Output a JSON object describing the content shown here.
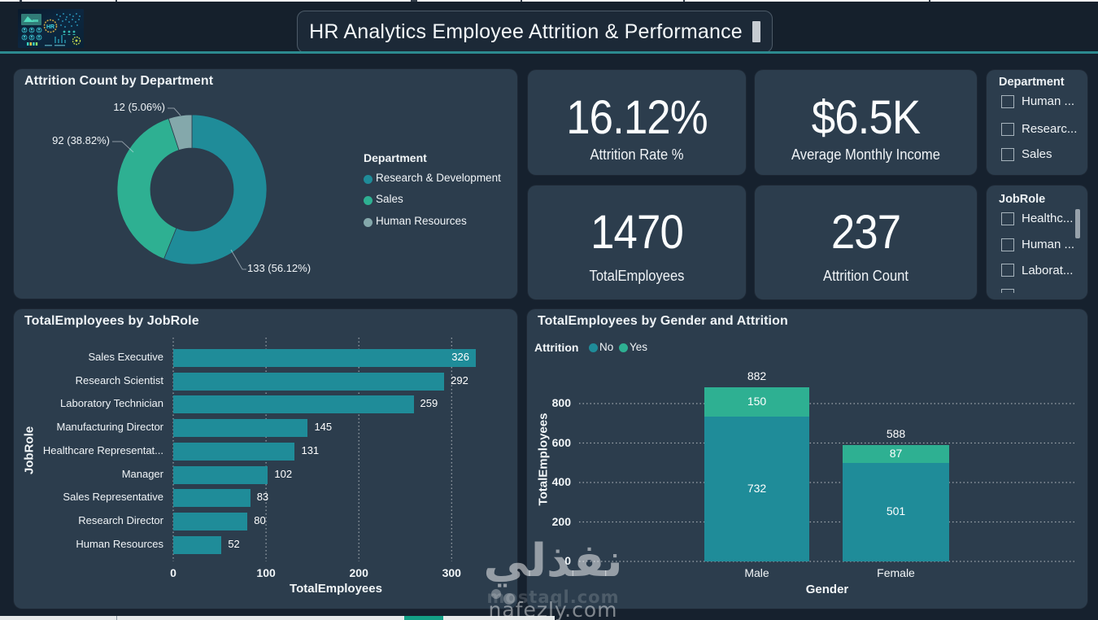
{
  "header": {
    "title": "HR Analytics Employee Attrition & Performance"
  },
  "kpis": [
    {
      "value": "16.12%",
      "label": "Attrition Rate %"
    },
    {
      "value": "$6.5K",
      "label": "Average Monthly Income"
    },
    {
      "value": "1470",
      "label": "TotalEmployees"
    },
    {
      "value": "237",
      "label": "Attrition Count"
    }
  ],
  "slicers": [
    {
      "title": "Department",
      "items": [
        "Human ...",
        "Researc...",
        "Sales"
      ]
    },
    {
      "title": "JobRole",
      "items": [
        "Healthc...",
        "Human ...",
        "Laborat...",
        ""
      ]
    }
  ],
  "colors": {
    "teal": "#1f8c99",
    "green": "#2eb092",
    "gray": "#84a8ab",
    "accent_line": "#2c8a8f",
    "card_bg": "#2c3d4d",
    "page_bg": "#16212e"
  },
  "watermark": {
    "arabic": "نفذلي",
    "faint": "mostaql.com",
    "main": "nafezly.com"
  },
  "chart_data": [
    {
      "id": "attrition_by_department",
      "type": "pie",
      "title": "Attrition Count by Department",
      "legend_title": "Department",
      "legend_position": "right",
      "labels": [
        "Research & Development",
        "Sales",
        "Human Resources"
      ],
      "values": [
        133,
        92,
        12
      ],
      "percents": [
        56.12,
        38.82,
        5.06
      ],
      "data_labels": [
        "133 (56.12%)",
        "92 (38.82%)",
        "12 (5.06%)"
      ],
      "colors": [
        "#1f8c99",
        "#2eb092",
        "#84a8ab"
      ],
      "donut_hole": 0.55
    },
    {
      "id": "totalemployees_by_jobrole",
      "type": "bar",
      "title": "TotalEmployees by JobRole",
      "categories": [
        "Sales Executive",
        "Research Scientist",
        "Laboratory Technician",
        "Manufacturing Director",
        "Healthcare Representat...",
        "Manager",
        "Sales Representative",
        "Research Director",
        "Human Resources"
      ],
      "values": [
        326,
        292,
        259,
        145,
        131,
        102,
        83,
        80,
        52
      ],
      "xlabel": "TotalEmployees",
      "ylabel": "JobRole",
      "xticks": [
        0,
        100,
        200,
        300
      ],
      "xlim": [
        0,
        340
      ],
      "grid": "dotted-vertical",
      "bar_color": "#1f8c99"
    },
    {
      "id": "totalemployees_by_gender_and_attrition",
      "type": "stacked-column",
      "title": "TotalEmployees by Gender and Attrition",
      "legend_title": "Attrition",
      "legend_entries": [
        "No",
        "Yes"
      ],
      "legend_colors": [
        "#1f8c99",
        "#2eb092"
      ],
      "categories": [
        "Male",
        "Female"
      ],
      "series": [
        {
          "name": "No",
          "color": "#1f8c99",
          "values": [
            732,
            501
          ]
        },
        {
          "name": "Yes",
          "color": "#2eb092",
          "values": [
            150,
            87
          ]
        }
      ],
      "totals": [
        882,
        588
      ],
      "xlabel": "Gender",
      "ylabel": "TotalEmployees",
      "yticks": [
        0,
        200,
        400,
        600,
        800
      ],
      "ylim": [
        0,
        882
      ],
      "grid": "dotted-horizontal"
    }
  ]
}
